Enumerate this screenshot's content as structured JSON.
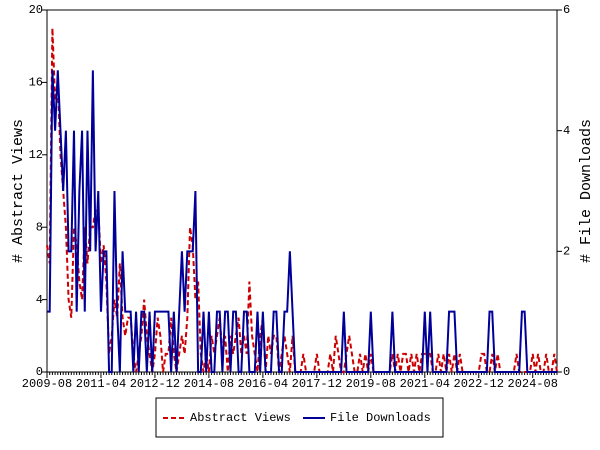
{
  "chart_data": {
    "type": "line",
    "y_label": "# Abstract Views",
    "y2_label": "# File Downloads",
    "categories": [
      "2009-08",
      null,
      null,
      null,
      null,
      null,
      null,
      null,
      null,
      null,
      null,
      null,
      null,
      null,
      null,
      null,
      null,
      null,
      null,
      null,
      "2011-04",
      null,
      null,
      null,
      null,
      null,
      null,
      null,
      null,
      null,
      null,
      null,
      null,
      null,
      null,
      null,
      null,
      null,
      null,
      null,
      "2012-12",
      null,
      null,
      null,
      null,
      null,
      null,
      null,
      null,
      null,
      null,
      null,
      null,
      null,
      null,
      null,
      null,
      null,
      null,
      null,
      "2014-08",
      null,
      null,
      null,
      null,
      null,
      null,
      null,
      null,
      null,
      null,
      null,
      null,
      null,
      null,
      null,
      null,
      null,
      null,
      null,
      "2016-04",
      null,
      null,
      null,
      null,
      null,
      null,
      null,
      null,
      null,
      null,
      null,
      null,
      null,
      null,
      null,
      null,
      null,
      null,
      null,
      "2017-12",
      null,
      null,
      null,
      null,
      null,
      null,
      null,
      null,
      null,
      null,
      null,
      null,
      null,
      null,
      null,
      null,
      null,
      null,
      null,
      "2019-08",
      null,
      null,
      null,
      null,
      null,
      null,
      null,
      null,
      null,
      null,
      null,
      null,
      null,
      null,
      null,
      null,
      null,
      null,
      null,
      "2021-04",
      null,
      null,
      null,
      null,
      null,
      null,
      null,
      null,
      null,
      null,
      null,
      null,
      null,
      null,
      null,
      null,
      null,
      null,
      null,
      "2022-12",
      null,
      null,
      null,
      null,
      null,
      null,
      null,
      null,
      null,
      null,
      null,
      null,
      null,
      null,
      null,
      null,
      null,
      null,
      null,
      "2024-08",
      null,
      null,
      null,
      null,
      null,
      null,
      null,
      null,
      null
    ],
    "series": [
      {
        "name": "Abstract Views",
        "color": "#cc0000",
        "dash": true,
        "axis": "y",
        "values": [
          7,
          6,
          19,
          15,
          16,
          12,
          10,
          8,
          4,
          3,
          8,
          7,
          5,
          4,
          8,
          6,
          8,
          8,
          9,
          9,
          6,
          7,
          5,
          1,
          2,
          4,
          3,
          6,
          3,
          2,
          3,
          3,
          1,
          0,
          1,
          2,
          4,
          2,
          1,
          0,
          1,
          3,
          2,
          0,
          1,
          1,
          3,
          1,
          0,
          1,
          2,
          1,
          3,
          8,
          7,
          4,
          5,
          1,
          0,
          1,
          0,
          2,
          1,
          2,
          3,
          1,
          2,
          0,
          2,
          1,
          2,
          3,
          1,
          2,
          1,
          5,
          2,
          1,
          0,
          2,
          3,
          0,
          2,
          1,
          2,
          2,
          0,
          1,
          2,
          1,
          0,
          2,
          0,
          0,
          0,
          1,
          0,
          0,
          0,
          0,
          1,
          0,
          0,
          0,
          0,
          1,
          0,
          2,
          1,
          0,
          0,
          1,
          2,
          1,
          0,
          0,
          1,
          0,
          1,
          0,
          1,
          0,
          0,
          0,
          0,
          0,
          0,
          0,
          1,
          0,
          1,
          0,
          1,
          1,
          0,
          1,
          0,
          1,
          0,
          1,
          1,
          1,
          1,
          0,
          0,
          1,
          0,
          1,
          0,
          1,
          0,
          1,
          0,
          1,
          0,
          0,
          0,
          0,
          0,
          0,
          0,
          1,
          1,
          0,
          0,
          1,
          0,
          1,
          0,
          0,
          0,
          0,
          0,
          0,
          1,
          0,
          0,
          0,
          0,
          0,
          1,
          0,
          1,
          0,
          0,
          1,
          0,
          0,
          1,
          0
        ]
      },
      {
        "name": "File Downloads",
        "color": "#000099",
        "dash": false,
        "axis": "y2",
        "values": [
          1,
          1,
          5,
          4,
          5,
          4,
          3,
          4,
          2,
          2,
          4,
          1,
          3,
          4,
          1,
          4,
          2,
          5,
          2,
          3,
          1,
          2,
          2,
          0,
          0,
          3,
          1,
          0,
          2,
          1,
          1,
          1,
          0,
          1,
          0,
          1,
          1,
          0,
          1,
          0,
          1,
          1,
          1,
          1,
          1,
          1,
          0,
          1,
          0,
          1,
          2,
          1,
          2,
          2,
          2,
          3,
          0,
          0,
          1,
          0,
          1,
          0,
          0,
          1,
          1,
          0,
          1,
          1,
          0,
          1,
          1,
          0,
          0,
          1,
          1,
          0,
          0,
          0,
          1,
          0,
          1,
          0,
          0,
          0,
          1,
          1,
          0,
          0,
          1,
          1,
          2,
          1,
          0,
          0,
          0,
          0,
          0,
          0,
          0,
          0,
          0,
          0,
          0,
          0,
          0,
          0,
          0,
          0,
          0,
          0,
          1,
          0,
          0,
          0,
          0,
          0,
          0,
          0,
          0,
          0,
          1,
          0,
          0,
          0,
          0,
          0,
          0,
          0,
          1,
          0,
          0,
          0,
          0,
          0,
          0,
          0,
          0,
          0,
          0,
          0,
          1,
          0,
          1,
          0,
          0,
          0,
          0,
          0,
          0,
          1,
          1,
          1,
          0,
          0,
          0,
          0,
          0,
          0,
          0,
          0,
          0,
          0,
          0,
          0,
          1,
          1,
          0,
          0,
          0,
          0,
          0,
          0,
          0,
          0,
          0,
          0,
          1,
          1,
          0,
          0,
          0,
          0,
          0,
          0,
          0,
          0,
          0,
          0,
          0,
          0
        ]
      }
    ],
    "ylim": [
      0,
      20
    ],
    "yticks": [
      0,
      4,
      8,
      12,
      16,
      20
    ],
    "y2lim": [
      0,
      6
    ],
    "y2ticks": [
      0,
      2,
      4,
      6
    ]
  }
}
